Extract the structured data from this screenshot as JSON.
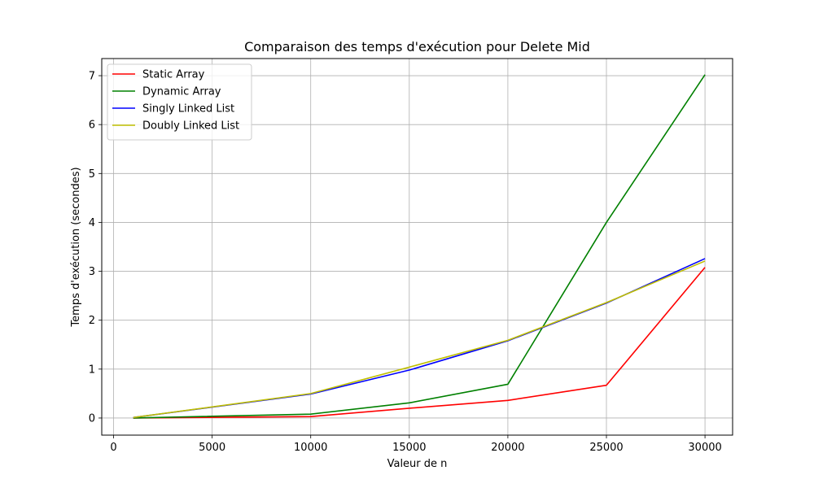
{
  "chart_data": {
    "type": "line",
    "title": "Comparaison des temps d'exécution pour Delete Mid",
    "xlabel": "Valeur de n",
    "ylabel": "Temps d'exécution (secondes)",
    "x": [
      1000,
      10000,
      15000,
      20000,
      25000,
      30000
    ],
    "xlim": [
      -600,
      31400
    ],
    "ylim": [
      -0.35,
      7.35
    ],
    "xticks": [
      0,
      5000,
      10000,
      15000,
      20000,
      25000,
      30000
    ],
    "yticks": [
      0,
      1,
      2,
      3,
      4,
      5,
      6,
      7
    ],
    "grid": true,
    "legend_position": "top-left",
    "series": [
      {
        "name": "Static Array",
        "color": "#ff0000",
        "values": [
          0.0,
          0.03,
          0.2,
          0.36,
          0.67,
          3.08
        ]
      },
      {
        "name": "Dynamic Array",
        "color": "#008000",
        "values": [
          0.0,
          0.08,
          0.31,
          0.69,
          4.0,
          7.02
        ]
      },
      {
        "name": "Singly Linked List",
        "color": "#0000ff",
        "values": [
          0.01,
          0.49,
          0.98,
          1.58,
          2.35,
          3.26
        ]
      },
      {
        "name": "Doubly Linked List",
        "color": "#bfbf00",
        "values": [
          0.01,
          0.5,
          1.04,
          1.59,
          2.36,
          3.21
        ]
      }
    ]
  }
}
